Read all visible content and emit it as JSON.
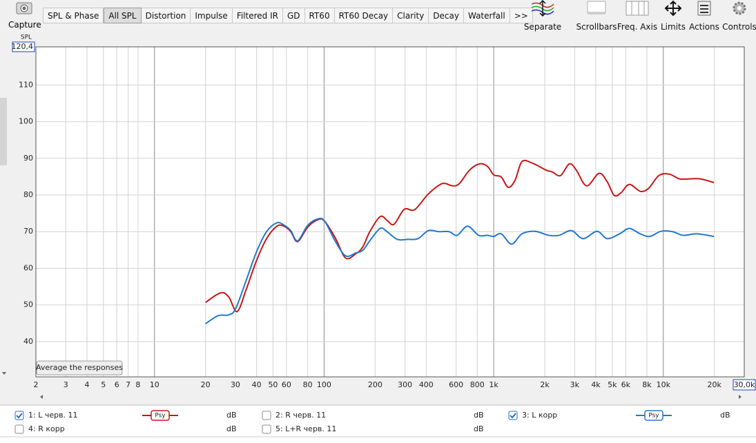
{
  "capture_label": "Capture",
  "tabs": [
    "SPL & Phase",
    "All SPL",
    "Distortion",
    "Impulse",
    "Filtered IR",
    "GD",
    "RT60",
    "RT60 Decay",
    "Clarity",
    "Decay",
    "Waterfall",
    ">>"
  ],
  "active_tab": 1,
  "tools": [
    "Separate",
    "Scrollbars",
    "Freq. Axis",
    "Limits",
    "Actions",
    "Controls"
  ],
  "average_button": "Average the responses",
  "psy_label": "Psy",
  "unit_label": "dB",
  "chart_data": {
    "type": "line",
    "y_label": "SPL",
    "xscale": "log",
    "grid": true,
    "xlim": [
      2,
      30000
    ],
    "ylim": [
      30.4,
      120.4
    ],
    "yticks": [
      40,
      50,
      60,
      70,
      80,
      90,
      100,
      110,
      {
        "value": 120.4,
        "label": "120,4"
      }
    ],
    "xticks": [
      2,
      3,
      4,
      5,
      6,
      7,
      8,
      10,
      20,
      30,
      40,
      50,
      60,
      80,
      100,
      200,
      300,
      400,
      600,
      800,
      {
        "value": 1000,
        "label": "1k"
      },
      {
        "value": 2000,
        "label": "2k"
      },
      {
        "value": 3000,
        "label": "3k"
      },
      {
        "value": 4000,
        "label": "4k"
      },
      {
        "value": 5000,
        "label": "5k"
      },
      {
        "value": 6000,
        "label": "6k"
      },
      {
        "value": 8000,
        "label": "8k"
      },
      {
        "value": 10000,
        "label": "10k"
      },
      {
        "value": 20000,
        "label": "20k"
      },
      {
        "value": 30000,
        "label": "30,0k"
      }
    ],
    "series": [
      {
        "name": "1: L черв. 11",
        "color": "#c81414",
        "checked": true,
        "x": [
          20,
          24.5,
          27.4,
          30.7,
          34.6,
          39.8,
          45.8,
          52.7,
          57.9,
          63.6,
          69.8,
          80.3,
          92.4,
          101,
          117,
          134,
          154,
          169,
          186,
          214,
          235,
          258,
          297,
          342,
          412,
          496,
          571,
          627,
          721,
          829,
          919,
          1000,
          1108,
          1217,
          1336,
          1467,
          1687,
          2033,
          2212,
          2475,
          2793,
          3068,
          3529,
          4176,
          4667,
          5128,
          5629,
          6297,
          7311,
          8179,
          9410,
          10826,
          12450,
          14318,
          16480,
          19870
        ],
        "values": [
          50.7,
          53.3,
          52.2,
          48.2,
          54,
          61.9,
          68.1,
          71.5,
          71.5,
          70,
          67.3,
          71.3,
          73.3,
          72.8,
          68.1,
          62.8,
          64,
          65.8,
          70,
          74.1,
          73.1,
          72,
          76.1,
          76,
          80.3,
          83.1,
          82.5,
          83.1,
          86.8,
          88.5,
          87.8,
          85.5,
          84.9,
          82.1,
          84,
          89.1,
          88.7,
          86.8,
          86.3,
          85.3,
          88.5,
          86.8,
          82.5,
          85.9,
          83.6,
          79.9,
          80.6,
          82.9,
          81,
          81.8,
          85.3,
          85.7,
          84.4,
          84.4,
          84.4,
          83.4
        ]
      },
      {
        "name": "3: L корр",
        "color": "#1f78d1",
        "checked": true,
        "x": [
          20,
          23.8,
          27.4,
          30.1,
          34.6,
          39.8,
          45.8,
          52.7,
          57.9,
          63.6,
          69.8,
          80.3,
          92.4,
          101,
          117,
          134,
          154,
          169,
          186,
          214,
          235,
          270,
          311,
          358,
          412,
          473,
          545,
          609,
          701,
          814,
          919,
          1000,
          1108,
          1275,
          1467,
          1751,
          2111,
          2429,
          2872,
          3367,
          4060,
          4667,
          5521,
          6297,
          7311,
          8337,
          9679,
          11343,
          13052,
          15730,
          19870
        ],
        "values": [
          44.9,
          47.1,
          47.3,
          49,
          56.5,
          64.3,
          70,
          72.4,
          71.8,
          70.3,
          67.5,
          71.8,
          73.5,
          72.8,
          67.2,
          63.4,
          64.2,
          64.9,
          67.5,
          70.9,
          70,
          67.9,
          67.9,
          68.1,
          70.3,
          70,
          70,
          69,
          71.5,
          69,
          69,
          68.7,
          69.4,
          66.6,
          69.4,
          70.1,
          69,
          69,
          70.3,
          68.1,
          70.1,
          68.1,
          69.4,
          70.9,
          69.4,
          68.7,
          70.1,
          70,
          69,
          69.4,
          68.7
        ]
      }
    ]
  },
  "other_measurements": [
    {
      "name": "2: R черв. 11",
      "color": "#3c9a1e",
      "checked": false
    },
    {
      "name": "4: R корр",
      "color": "#d88a12",
      "checked": false
    },
    {
      "name": "5: L+R черв. 11",
      "color": "#a89a10",
      "checked": false
    }
  ]
}
